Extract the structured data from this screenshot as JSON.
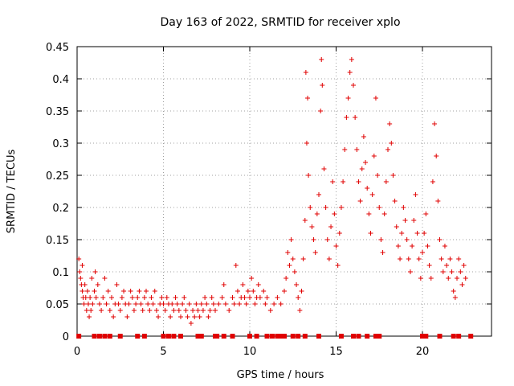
{
  "chart_data": {
    "type": "scatter",
    "title": "Day 163 of 2022, SRMTID for receiver xplo",
    "xlabel": "GPS time / hours",
    "ylabel": "SRMTID / TECUs",
    "xlim": [
      0,
      24
    ],
    "ylim": [
      0,
      0.45
    ],
    "xticks": [
      0,
      5,
      10,
      15,
      20
    ],
    "xtick_labels": [
      "0",
      "5",
      "10",
      "15",
      "20"
    ],
    "yticks": [
      0,
      0.05,
      0.1,
      0.15,
      0.2,
      0.25,
      0.3,
      0.35,
      0.4,
      0.45
    ],
    "ytick_labels": [
      "0",
      "0.05",
      "0.1",
      "0.15",
      "0.2",
      "0.25",
      "0.3",
      "0.35",
      "0.4",
      "0.45"
    ],
    "grid": true,
    "marker": "+",
    "color": "#e00000",
    "series": [
      {
        "name": "SRMTID",
        "points": [
          [
            0.1,
            0.12
          ],
          [
            0.15,
            0.1
          ],
          [
            0.2,
            0.09
          ],
          [
            0.25,
            0.08
          ],
          [
            0.3,
            0.07
          ],
          [
            0.3,
            0.11
          ],
          [
            0.35,
            0.06
          ],
          [
            0.4,
            0.05
          ],
          [
            0.45,
            0.08
          ],
          [
            0.5,
            0.06
          ],
          [
            0.55,
            0.04
          ],
          [
            0.6,
            0.07
          ],
          [
            0.65,
            0.05
          ],
          [
            0.7,
            0.03
          ],
          [
            0.75,
            0.06
          ],
          [
            0.8,
            0.04
          ],
          [
            0.85,
            0.09
          ],
          [
            0.9,
            0.05
          ],
          [
            1.0,
            0.07
          ],
          [
            1.05,
            0.1
          ],
          [
            1.1,
            0.06
          ],
          [
            1.2,
            0.08
          ],
          [
            1.3,
            0.05
          ],
          [
            1.4,
            0.04
          ],
          [
            1.5,
            0.06
          ],
          [
            1.6,
            0.09
          ],
          [
            1.7,
            0.05
          ],
          [
            1.8,
            0.07
          ],
          [
            1.9,
            0.04
          ],
          [
            2.0,
            0.06
          ],
          [
            2.1,
            0.03
          ],
          [
            2.2,
            0.05
          ],
          [
            2.3,
            0.08
          ],
          [
            2.4,
            0.05
          ],
          [
            2.5,
            0.04
          ],
          [
            2.6,
            0.06
          ],
          [
            2.7,
            0.07
          ],
          [
            2.8,
            0.05
          ],
          [
            2.9,
            0.03
          ],
          [
            3.0,
            0.05
          ],
          [
            3.1,
            0.07
          ],
          [
            3.2,
            0.06
          ],
          [
            3.3,
            0.04
          ],
          [
            3.4,
            0.05
          ],
          [
            3.5,
            0.06
          ],
          [
            3.6,
            0.07
          ],
          [
            3.7,
            0.05
          ],
          [
            3.8,
            0.04
          ],
          [
            3.9,
            0.06
          ],
          [
            4.0,
            0.07
          ],
          [
            4.1,
            0.05
          ],
          [
            4.2,
            0.04
          ],
          [
            4.3,
            0.06
          ],
          [
            4.4,
            0.05
          ],
          [
            4.5,
            0.07
          ],
          [
            4.6,
            0.04
          ],
          [
            4.7,
            0.03
          ],
          [
            4.8,
            0.05
          ],
          [
            4.9,
            0.06
          ],
          [
            5.0,
            0.05
          ],
          [
            5.1,
            0.04
          ],
          [
            5.2,
            0.06
          ],
          [
            5.3,
            0.05
          ],
          [
            5.4,
            0.03
          ],
          [
            5.5,
            0.05
          ],
          [
            5.6,
            0.04
          ],
          [
            5.7,
            0.06
          ],
          [
            5.8,
            0.05
          ],
          [
            5.9,
            0.04
          ],
          [
            6.0,
            0.03
          ],
          [
            6.1,
            0.05
          ],
          [
            6.2,
            0.06
          ],
          [
            6.3,
            0.04
          ],
          [
            6.4,
            0.03
          ],
          [
            6.5,
            0.05
          ],
          [
            6.6,
            0.02
          ],
          [
            6.7,
            0.04
          ],
          [
            6.8,
            0.03
          ],
          [
            6.9,
            0.05
          ],
          [
            7.0,
            0.04
          ],
          [
            7.1,
            0.03
          ],
          [
            7.2,
            0.05
          ],
          [
            7.3,
            0.04
          ],
          [
            7.4,
            0.06
          ],
          [
            7.5,
            0.05
          ],
          [
            7.6,
            0.03
          ],
          [
            7.7,
            0.04
          ],
          [
            7.8,
            0.06
          ],
          [
            7.9,
            0.05
          ],
          [
            8.0,
            0.04
          ],
          [
            8.2,
            0.05
          ],
          [
            8.4,
            0.06
          ],
          [
            8.5,
            0.08
          ],
          [
            8.6,
            0.05
          ],
          [
            8.8,
            0.04
          ],
          [
            9.0,
            0.06
          ],
          [
            9.1,
            0.05
          ],
          [
            9.2,
            0.11
          ],
          [
            9.3,
            0.07
          ],
          [
            9.4,
            0.05
          ],
          [
            9.5,
            0.06
          ],
          [
            9.6,
            0.08
          ],
          [
            9.7,
            0.06
          ],
          [
            9.8,
            0.05
          ],
          [
            9.9,
            0.07
          ],
          [
            10.0,
            0.06
          ],
          [
            10.1,
            0.09
          ],
          [
            10.2,
            0.07
          ],
          [
            10.3,
            0.05
          ],
          [
            10.4,
            0.06
          ],
          [
            10.5,
            0.08
          ],
          [
            10.6,
            0.06
          ],
          [
            10.8,
            0.07
          ],
          [
            10.9,
            0.05
          ],
          [
            11.0,
            0.06
          ],
          [
            11.2,
            0.04
          ],
          [
            11.4,
            0.05
          ],
          [
            11.6,
            0.06
          ],
          [
            11.8,
            0.05
          ],
          [
            12.0,
            0.07
          ],
          [
            12.1,
            0.09
          ],
          [
            12.2,
            0.13
          ],
          [
            12.3,
            0.11
          ],
          [
            12.4,
            0.15
          ],
          [
            12.5,
            0.12
          ],
          [
            12.6,
            0.1
          ],
          [
            12.7,
            0.08
          ],
          [
            12.8,
            0.06
          ],
          [
            12.9,
            0.04
          ],
          [
            13.0,
            0.07
          ],
          [
            13.1,
            0.12
          ],
          [
            13.2,
            0.18
          ],
          [
            13.25,
            0.41
          ],
          [
            13.3,
            0.3
          ],
          [
            13.35,
            0.37
          ],
          [
            13.4,
            0.25
          ],
          [
            13.5,
            0.2
          ],
          [
            13.6,
            0.17
          ],
          [
            13.7,
            0.15
          ],
          [
            13.8,
            0.13
          ],
          [
            13.9,
            0.19
          ],
          [
            14.0,
            0.22
          ],
          [
            14.1,
            0.35
          ],
          [
            14.15,
            0.43
          ],
          [
            14.2,
            0.39
          ],
          [
            14.3,
            0.26
          ],
          [
            14.4,
            0.2
          ],
          [
            14.5,
            0.15
          ],
          [
            14.6,
            0.12
          ],
          [
            14.7,
            0.17
          ],
          [
            14.8,
            0.24
          ],
          [
            14.9,
            0.19
          ],
          [
            15.0,
            0.14
          ],
          [
            15.1,
            0.11
          ],
          [
            15.2,
            0.16
          ],
          [
            15.3,
            0.2
          ],
          [
            15.4,
            0.24
          ],
          [
            15.5,
            0.29
          ],
          [
            15.6,
            0.34
          ],
          [
            15.7,
            0.37
          ],
          [
            15.8,
            0.41
          ],
          [
            15.9,
            0.43
          ],
          [
            16.0,
            0.39
          ],
          [
            16.1,
            0.34
          ],
          [
            16.2,
            0.29
          ],
          [
            16.3,
            0.24
          ],
          [
            16.4,
            0.21
          ],
          [
            16.5,
            0.26
          ],
          [
            16.6,
            0.31
          ],
          [
            16.7,
            0.27
          ],
          [
            16.8,
            0.23
          ],
          [
            16.9,
            0.19
          ],
          [
            17.0,
            0.16
          ],
          [
            17.1,
            0.22
          ],
          [
            17.2,
            0.28
          ],
          [
            17.3,
            0.37
          ],
          [
            17.4,
            0.25
          ],
          [
            17.5,
            0.2
          ],
          [
            17.6,
            0.15
          ],
          [
            17.7,
            0.13
          ],
          [
            17.8,
            0.19
          ],
          [
            17.9,
            0.24
          ],
          [
            18.0,
            0.29
          ],
          [
            18.1,
            0.33
          ],
          [
            18.2,
            0.3
          ],
          [
            18.3,
            0.25
          ],
          [
            18.4,
            0.21
          ],
          [
            18.5,
            0.17
          ],
          [
            18.6,
            0.14
          ],
          [
            18.7,
            0.12
          ],
          [
            18.8,
            0.16
          ],
          [
            18.9,
            0.2
          ],
          [
            19.0,
            0.18
          ],
          [
            19.1,
            0.15
          ],
          [
            19.2,
            0.12
          ],
          [
            19.3,
            0.1
          ],
          [
            19.4,
            0.14
          ],
          [
            19.5,
            0.18
          ],
          [
            19.6,
            0.22
          ],
          [
            19.7,
            0.16
          ],
          [
            19.8,
            0.12
          ],
          [
            19.9,
            0.09
          ],
          [
            20.0,
            0.13
          ],
          [
            20.1,
            0.16
          ],
          [
            20.2,
            0.19
          ],
          [
            20.3,
            0.14
          ],
          [
            20.4,
            0.11
          ],
          [
            20.5,
            0.09
          ],
          [
            20.6,
            0.24
          ],
          [
            20.7,
            0.33
          ],
          [
            20.8,
            0.28
          ],
          [
            20.9,
            0.21
          ],
          [
            21.0,
            0.15
          ],
          [
            21.1,
            0.12
          ],
          [
            21.2,
            0.1
          ],
          [
            21.3,
            0.14
          ],
          [
            21.4,
            0.11
          ],
          [
            21.5,
            0.09
          ],
          [
            21.6,
            0.12
          ],
          [
            21.7,
            0.1
          ],
          [
            21.8,
            0.07
          ],
          [
            21.9,
            0.06
          ],
          [
            22.0,
            0.09
          ],
          [
            22.1,
            0.12
          ],
          [
            22.2,
            0.1
          ],
          [
            22.3,
            0.08
          ],
          [
            22.4,
            0.11
          ],
          [
            22.5,
            0.09
          ]
        ],
        "zero_points_x": [
          0.1,
          1.0,
          1.3,
          1.6,
          1.9,
          2.5,
          3.5,
          3.9,
          5.0,
          5.3,
          5.6,
          6.0,
          7.0,
          7.2,
          8.0,
          8.1,
          8.5,
          9.0,
          10.0,
          10.4,
          11.0,
          11.3,
          11.6,
          11.8,
          12.0,
          12.5,
          12.8,
          13.2,
          14.0,
          15.3,
          16.0,
          16.3,
          16.8,
          17.3,
          17.5,
          20.0,
          20.2,
          21.0,
          21.8,
          22.1,
          22.8
        ]
      }
    ]
  }
}
